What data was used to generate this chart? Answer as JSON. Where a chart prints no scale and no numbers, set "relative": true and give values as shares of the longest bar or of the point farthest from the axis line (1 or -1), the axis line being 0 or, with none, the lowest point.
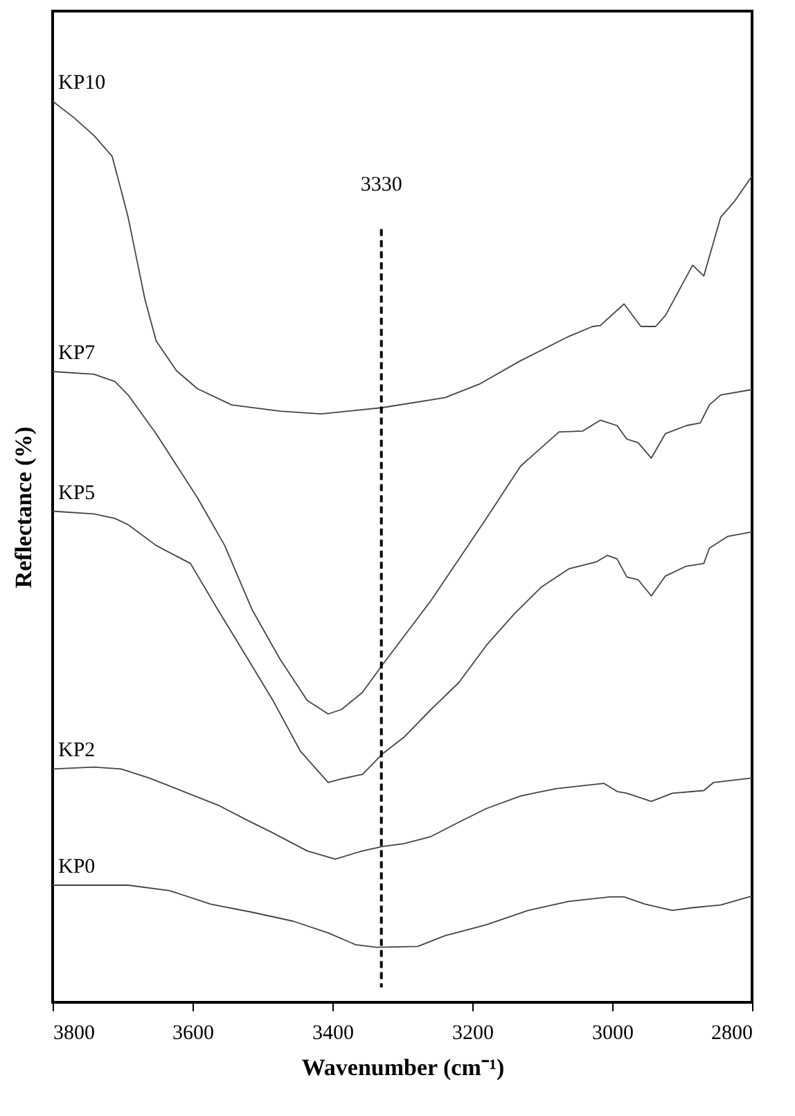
{
  "chart_data": {
    "type": "line",
    "relative": true,
    "xlabel": "Wavenumber (cm⁻¹)",
    "ylabel": "Reflectance (%)",
    "xlim": [
      3800,
      2800
    ],
    "xticks": [
      3800,
      3600,
      3400,
      3200,
      3000,
      2800
    ],
    "grid": false,
    "marker": "none",
    "line_style": "solid",
    "ref_lines": [
      {
        "axis": "x",
        "value": 3330,
        "label": "3330",
        "color": "#000000",
        "line_style": "dashed"
      }
    ],
    "series": [
      {
        "name": "KP10",
        "color": "#444444",
        "x": [
          3800,
          3770,
          3741,
          3715,
          3702,
          3692,
          3682,
          3668,
          3652,
          3623,
          3593,
          3544,
          3475,
          3416,
          3328,
          3239,
          3190,
          3131,
          3062,
          3028,
          3017,
          2983,
          2959,
          2938,
          2924,
          2885,
          2869,
          2845,
          2825,
          2800
        ],
        "values": [
          1.0,
          0.982,
          0.962,
          0.939,
          0.901,
          0.871,
          0.833,
          0.78,
          0.734,
          0.701,
          0.681,
          0.663,
          0.656,
          0.653,
          0.66,
          0.671,
          0.686,
          0.712,
          0.739,
          0.75,
          0.751,
          0.775,
          0.75,
          0.75,
          0.762,
          0.818,
          0.806,
          0.871,
          0.889,
          0.917
        ]
      },
      {
        "name": "KP7",
        "color": "#444444",
        "x": [
          3800,
          3741,
          3711,
          3692,
          3652,
          3593,
          3554,
          3515,
          3475,
          3436,
          3406,
          3387,
          3357,
          3328,
          3259,
          3206,
          3180,
          3131,
          3076,
          3042,
          3017,
          2993,
          2979,
          2963,
          2944,
          2924,
          2894,
          2874,
          2861,
          2845,
          2800
        ],
        "values": [
          0.7,
          0.697,
          0.689,
          0.674,
          0.631,
          0.56,
          0.507,
          0.436,
          0.381,
          0.335,
          0.32,
          0.325,
          0.344,
          0.375,
          0.446,
          0.507,
          0.537,
          0.595,
          0.633,
          0.634,
          0.646,
          0.64,
          0.625,
          0.621,
          0.604,
          0.631,
          0.64,
          0.643,
          0.663,
          0.674,
          0.68
        ]
      },
      {
        "name": "KP5",
        "color": "#444444",
        "x": [
          3800,
          3741,
          3711,
          3692,
          3652,
          3603,
          3564,
          3524,
          3485,
          3446,
          3406,
          3387,
          3357,
          3328,
          3298,
          3259,
          3219,
          3180,
          3140,
          3101,
          3062,
          3022,
          3007,
          2993,
          2979,
          2963,
          2944,
          2924,
          2894,
          2869,
          2861,
          2835,
          2800
        ],
        "values": [
          0.545,
          0.542,
          0.537,
          0.53,
          0.507,
          0.487,
          0.436,
          0.385,
          0.335,
          0.279,
          0.244,
          0.248,
          0.253,
          0.276,
          0.294,
          0.325,
          0.355,
          0.396,
          0.431,
          0.461,
          0.481,
          0.489,
          0.496,
          0.492,
          0.472,
          0.469,
          0.451,
          0.473,
          0.484,
          0.487,
          0.504,
          0.517,
          0.522
        ]
      },
      {
        "name": "KP2",
        "color": "#444444",
        "x": [
          3800,
          3741,
          3702,
          3662,
          3613,
          3564,
          3524,
          3485,
          3436,
          3396,
          3357,
          3328,
          3298,
          3259,
          3219,
          3180,
          3131,
          3081,
          3012,
          2993,
          2979,
          2944,
          2914,
          2869,
          2855,
          2800
        ],
        "values": [
          0.259,
          0.261,
          0.259,
          0.249,
          0.234,
          0.219,
          0.203,
          0.188,
          0.168,
          0.159,
          0.168,
          0.173,
          0.176,
          0.184,
          0.2,
          0.215,
          0.229,
          0.237,
          0.243,
          0.234,
          0.232,
          0.223,
          0.232,
          0.235,
          0.244,
          0.249
        ]
      },
      {
        "name": "KP0",
        "color": "#444444",
        "x": [
          3800,
          3692,
          3633,
          3574,
          3515,
          3456,
          3406,
          3367,
          3337,
          3278,
          3239,
          3180,
          3120,
          3062,
          3003,
          2983,
          2953,
          2914,
          2885,
          2845,
          2800
        ],
        "values": [
          0.13,
          0.13,
          0.124,
          0.109,
          0.1,
          0.09,
          0.077,
          0.064,
          0.061,
          0.062,
          0.074,
          0.086,
          0.102,
          0.112,
          0.117,
          0.117,
          0.109,
          0.102,
          0.105,
          0.108,
          0.118
        ]
      }
    ]
  }
}
